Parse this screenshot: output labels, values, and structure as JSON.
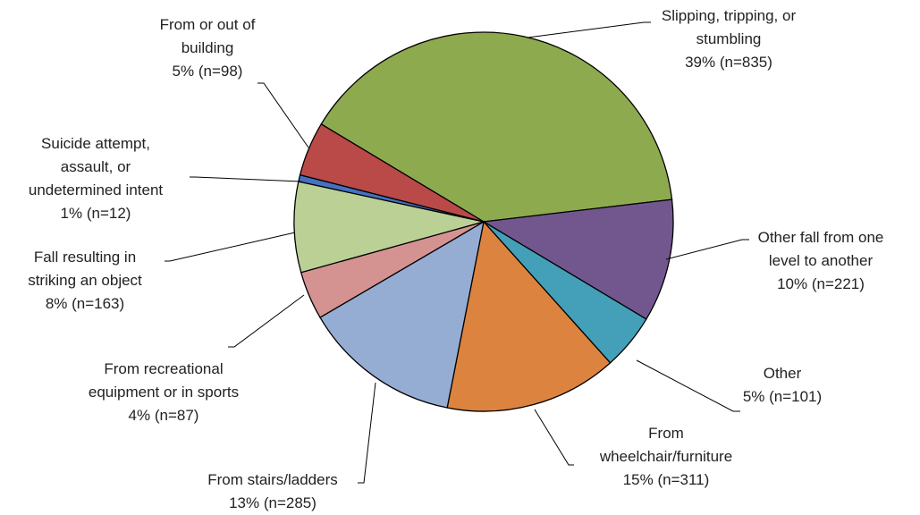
{
  "chart_data": {
    "type": "pie",
    "categories": [
      "Slipping, tripping, or stumbling",
      "Other fall from one level to another",
      "Other",
      "From wheelchair/furniture",
      "From stairs/ladders",
      "From recreational equipment or in sports",
      "Fall resulting in striking an object",
      "Suicide attempt, assault, or undetermined intent",
      "From or out of building"
    ],
    "values": [
      835,
      221,
      101,
      311,
      285,
      87,
      163,
      12,
      98
    ],
    "value_labels": [
      "39% (n=835)",
      "10% (n=221)",
      "5% (n=101)",
      "15% (n=311)",
      "13% (n=285)",
      "4% (n=87)",
      "8% (n=163)",
      "1% (n=12)",
      "5% (n=98)"
    ],
    "colors": [
      "#8eaa4f",
      "#72578f",
      "#44a0b8",
      "#dd8340",
      "#96add3",
      "#d49391",
      "#bbd095",
      "#4471c4",
      "#b94a48"
    ]
  }
}
